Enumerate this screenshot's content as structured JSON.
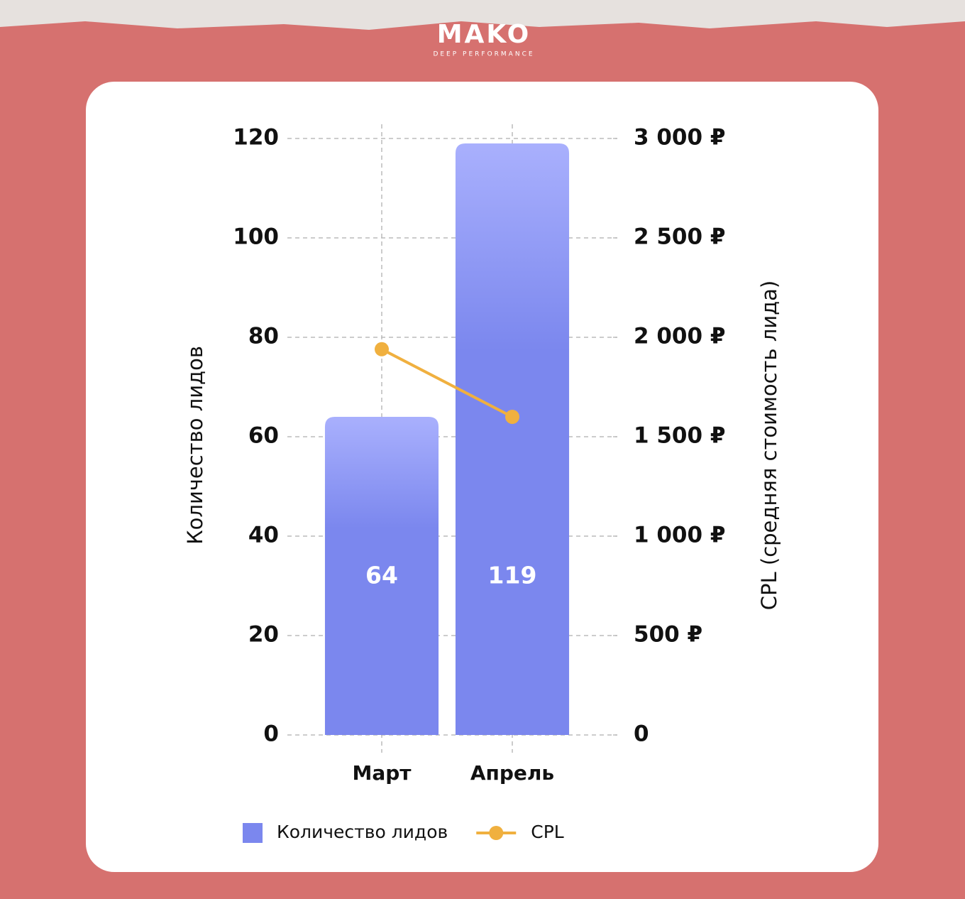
{
  "header": {
    "logo": "MAKO",
    "tagline": "DEEP PERFORMANCE"
  },
  "chart_data": {
    "type": "bar",
    "y_label": "Количество лидов",
    "y2_label": "CPL (средняя стоимость лида)",
    "categories": [
      "Март",
      "Апрель"
    ],
    "series": [
      {
        "name": "Количество лидов",
        "type": "bar",
        "color": "#7b87ee",
        "values": [
          64,
          119
        ]
      },
      {
        "name": "CPL",
        "type": "line",
        "axis": "y2",
        "color": "#f0b03f",
        "values": [
          1940,
          1600
        ]
      }
    ],
    "ylim": [
      0,
      120
    ],
    "yticks": [
      0,
      20,
      40,
      60,
      80,
      100,
      120
    ],
    "y2lim": [
      0,
      3000
    ],
    "y2ticks": [
      0,
      {
        "value": 500,
        "label": "500 ₽"
      },
      {
        "value": 1000,
        "label": "1 000 ₽"
      },
      {
        "value": 1500,
        "label": "1 500 ₽"
      },
      {
        "value": 2000,
        "label": "2 000 ₽"
      },
      {
        "value": 2500,
        "label": "2 500 ₽"
      },
      {
        "value": 3000,
        "label": "3 000 ₽"
      }
    ],
    "grid": true,
    "legend": "bottom"
  }
}
